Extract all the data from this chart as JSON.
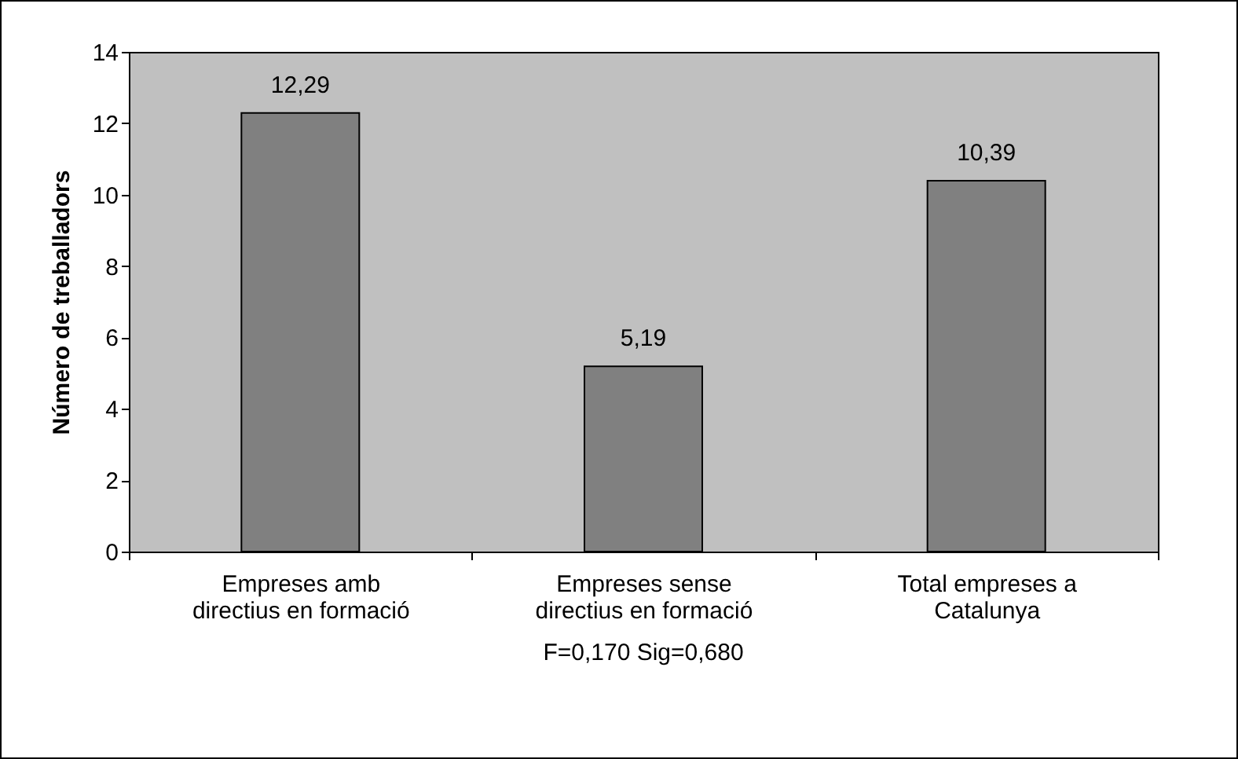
{
  "chart_data": {
    "type": "bar",
    "ylabel": "Número de treballadors",
    "categories": [
      "Empreses amb directius en formació",
      "Empreses sense directius en formació",
      "Total empreses a Catalunya"
    ],
    "values": [
      12.29,
      5.19,
      10.39
    ],
    "value_labels": [
      "12,29",
      "5,19",
      "10,39"
    ],
    "color": "#808080",
    "ylim": [
      0,
      14
    ],
    "yticks": [
      0,
      2,
      4,
      6,
      8,
      10,
      12,
      14
    ],
    "grid": false,
    "annotations": [
      "F=0,170      Sig=0,680"
    ]
  }
}
